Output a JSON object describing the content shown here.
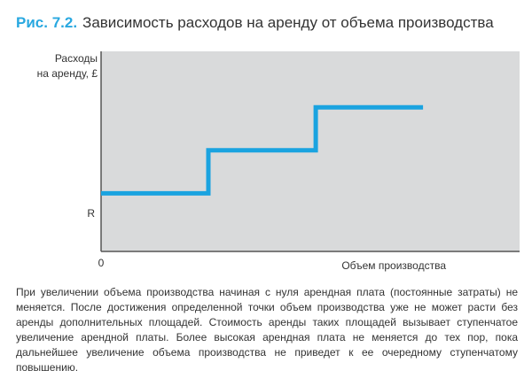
{
  "figure": {
    "number": "Рис. 7.2.",
    "title": "Зависимость расходов на аренду от объема производства"
  },
  "chart_data": {
    "type": "line",
    "series": [
      {
        "x": [
          0,
          1,
          1,
          2,
          2,
          3
        ],
        "y": [
          1,
          1,
          2,
          2,
          3,
          3
        ]
      }
    ],
    "xlabel": "Объем производства",
    "ylabel_lines": [
      "Расходы",
      "на аренду, £"
    ],
    "ytick_label": "R",
    "origin_label": "0",
    "xlim": [
      0,
      3.9
    ],
    "ylim": [
      -0.35,
      4.3
    ],
    "grid": false,
    "colors": {
      "line": "#1aa3e0",
      "plot_bg": "#d9dadb",
      "axis": "#555555"
    }
  },
  "caption": "При увеличении объема производства начиная с нуля арендная плата (постоянные затраты) не меняется. После достижения определенной точки объем производства уже не может расти без аренды дополнительных площадей. Стоимость аренды таких площадей вызывает ступенчатое увеличение арендной платы. Более высокая арендная плата не меняется до тех пор, пока дальнейшее увеличение объема производства не приведет к ее очередному ступенчатому повышению."
}
